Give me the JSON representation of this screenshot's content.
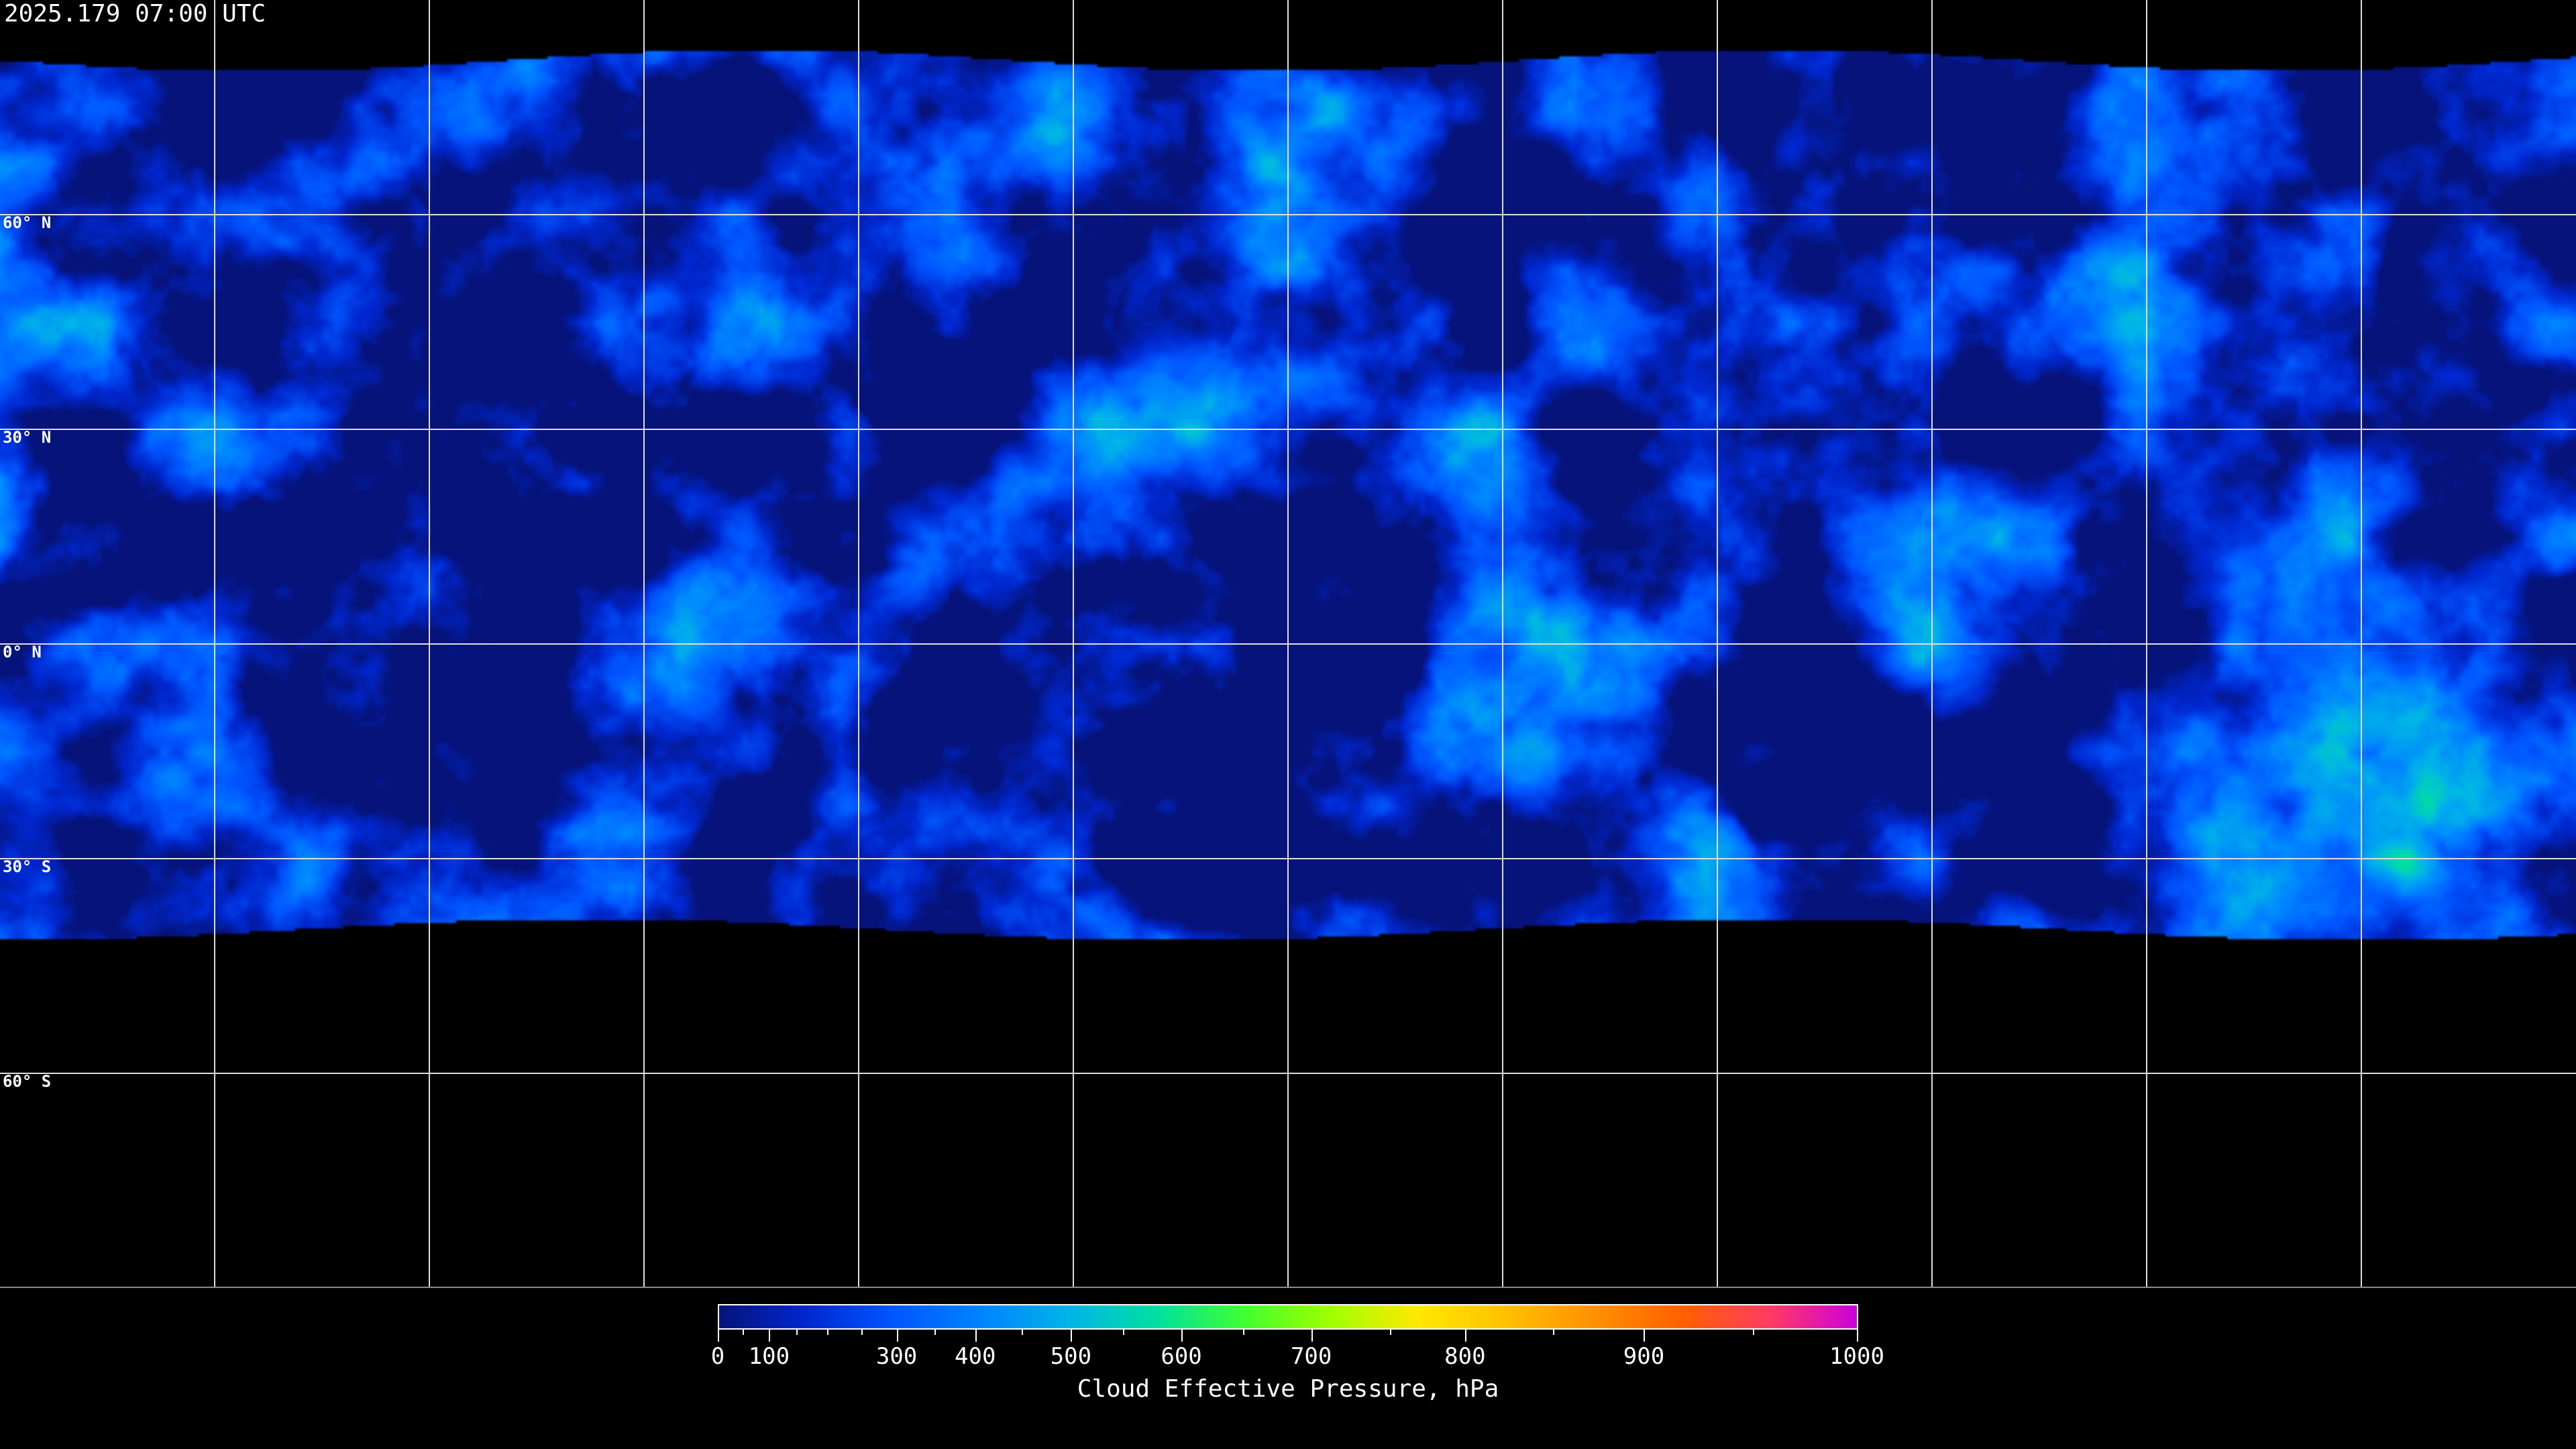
{
  "timestamp": "2025.179 07:00 UTC",
  "map": {
    "projection": "equirectangular",
    "latitude_labels": [
      "60° N",
      "30° N",
      "0° N",
      "30° S",
      "60° S"
    ],
    "gridlines_every_degrees": 30,
    "background_color": "#000000",
    "coastline_color": "#ffffff"
  },
  "colorbar": {
    "title": "Cloud Effective Pressure, hPa",
    "ticks": [
      {
        "label": "0",
        "value": 0,
        "pos": 0
      },
      {
        "label": "100",
        "value": 100,
        "pos": 0.045
      },
      {
        "label": "300",
        "value": 300,
        "pos": 0.157
      },
      {
        "label": "400",
        "value": 400,
        "pos": 0.226
      },
      {
        "label": "500",
        "value": 500,
        "pos": 0.31
      },
      {
        "label": "600",
        "value": 600,
        "pos": 0.407
      },
      {
        "label": "700",
        "value": 700,
        "pos": 0.521
      },
      {
        "label": "800",
        "value": 800,
        "pos": 0.656
      },
      {
        "label": "900",
        "value": 900,
        "pos": 0.813
      },
      {
        "label": "1000",
        "value": 1000,
        "pos": 1
      }
    ],
    "minor_ticks": [
      0.022,
      0.069,
      0.096,
      0.126,
      0.19,
      0.267,
      0.356,
      0.461,
      0.59,
      0.733,
      0.909
    ],
    "colors": [
      "#06137a",
      "#0028d0",
      "#0057ff",
      "#0084ff",
      "#00b4e8",
      "#00e0a0",
      "#40ff30",
      "#a0ff00",
      "#ffe800",
      "#ffc000",
      "#ff9000",
      "#ff6000",
      "#ff3c60",
      "#cc00dd"
    ]
  }
}
